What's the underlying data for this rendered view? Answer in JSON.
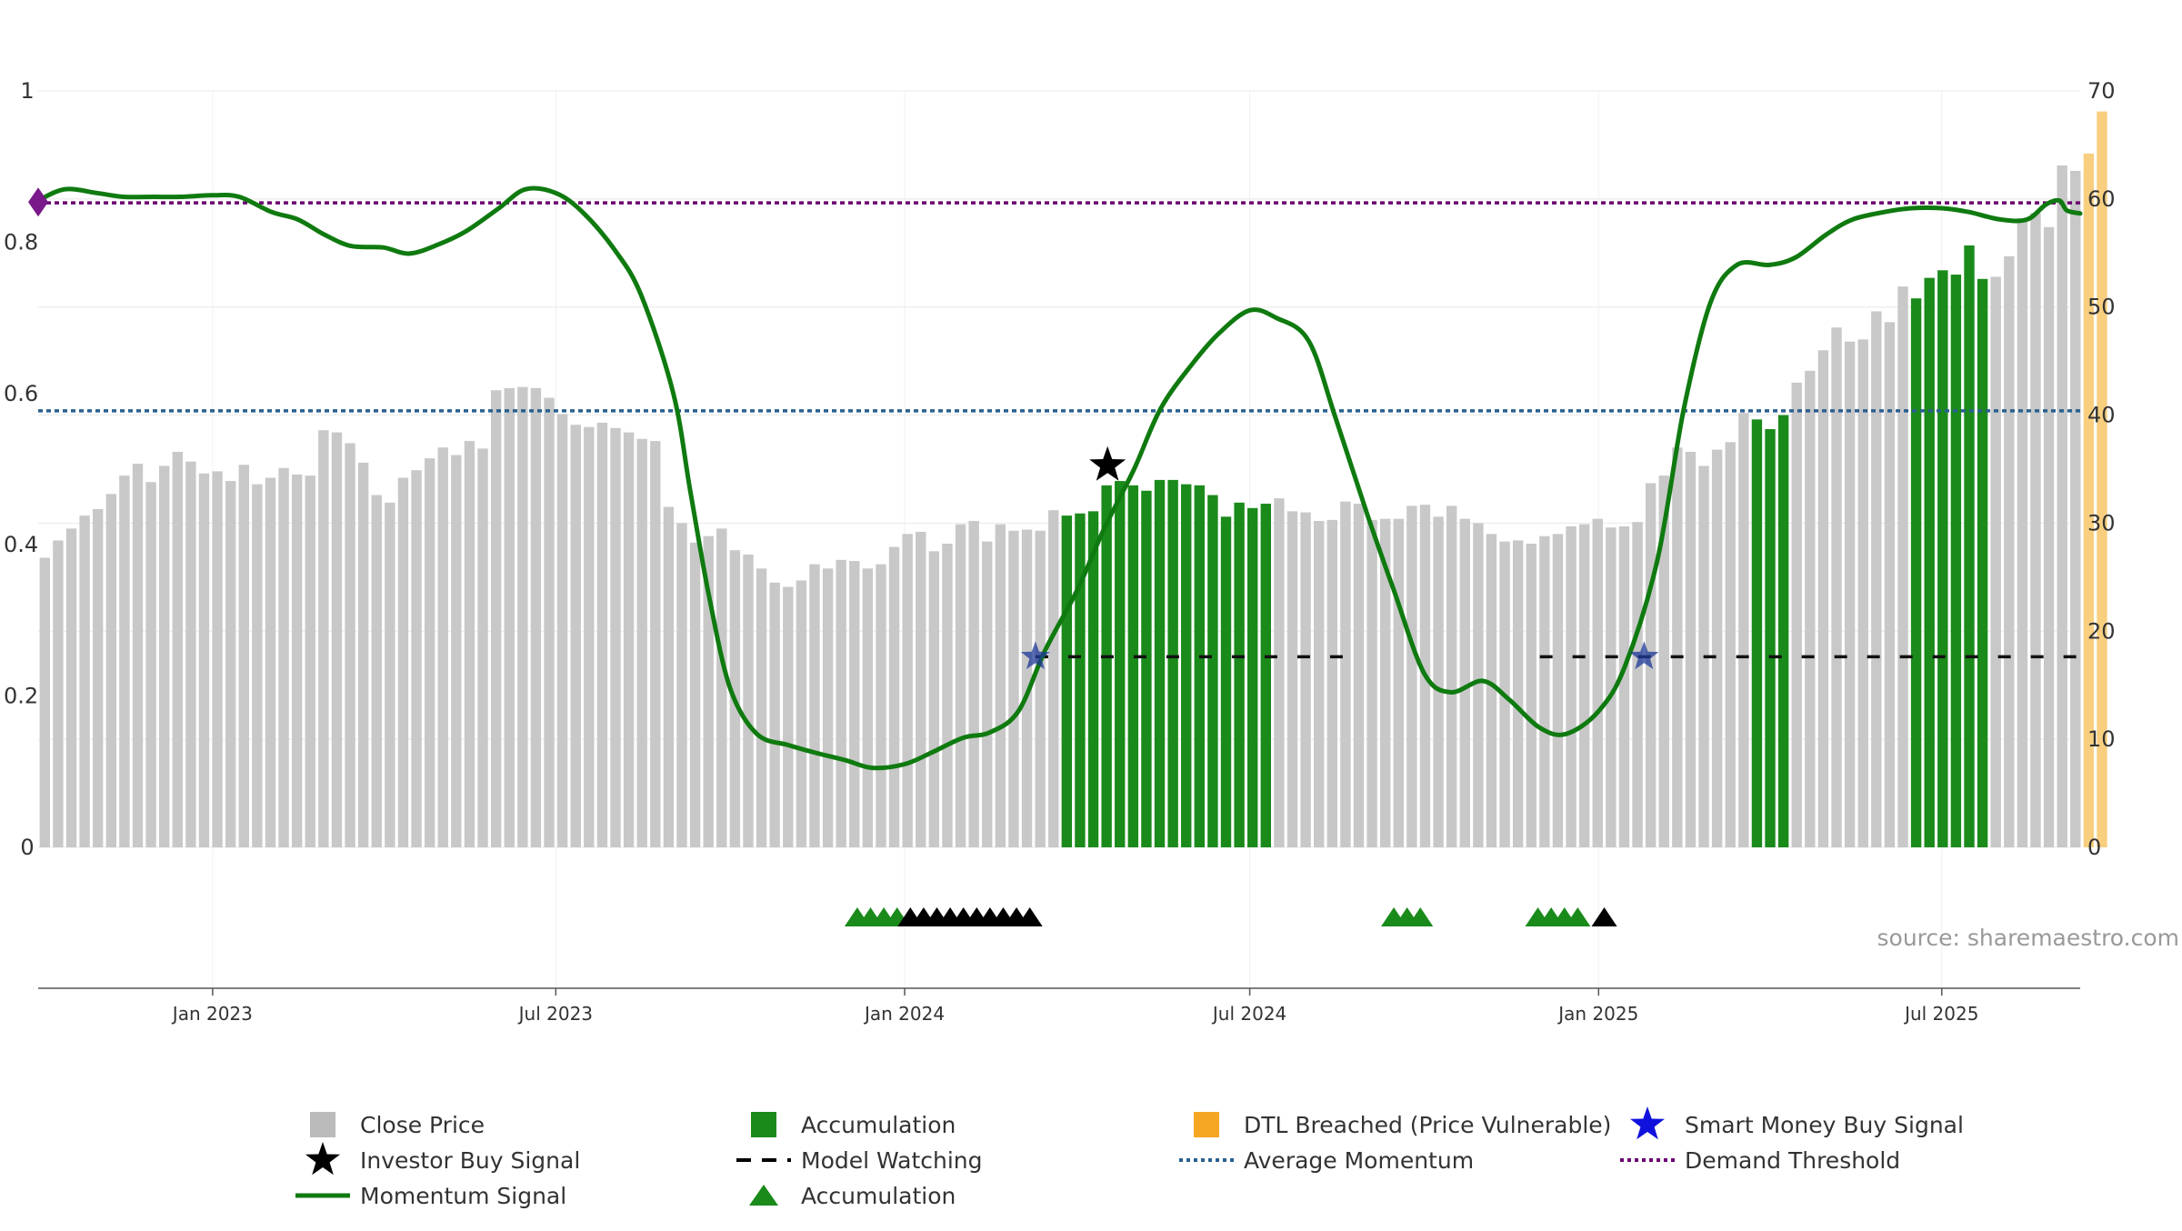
{
  "chart_data": {
    "type": "bar",
    "title": "",
    "left_axis": {
      "min": 0,
      "max": 1,
      "ticks": [
        "0",
        "0.2",
        "0.4",
        "0.6",
        "0.8",
        "1"
      ]
    },
    "right_axis": {
      "min": 0,
      "max": 70,
      "ticks": [
        "0",
        "10",
        "20",
        "30",
        "40",
        "50",
        "60",
        "70"
      ]
    },
    "x_axis": {
      "start": "2022-10-01",
      "end": "2025-09-12",
      "ticks": [
        {
          "label": "Jan 2023",
          "date": "2023-01-01"
        },
        {
          "label": "Jul 2023",
          "date": "2023-07-01"
        },
        {
          "label": "Jan 2024",
          "date": "2024-01-01"
        },
        {
          "label": "Jul 2024",
          "date": "2024-07-01"
        },
        {
          "label": "Jan 2025",
          "date": "2025-01-01"
        },
        {
          "label": "Jul 2025",
          "date": "2025-07-01"
        }
      ]
    },
    "bars": {
      "start": "2022-10-01",
      "step_days": 7,
      "values": [
        26.8,
        28.4,
        29.5,
        30.7,
        31.3,
        32.7,
        34.4,
        35.5,
        33.8,
        35.3,
        36.6,
        35.7,
        34.6,
        34.8,
        33.9,
        35.4,
        33.6,
        34.2,
        35.1,
        34.5,
        34.4,
        38.6,
        38.4,
        37.4,
        35.6,
        32.6,
        31.9,
        34.2,
        34.9,
        36.0,
        37.0,
        36.3,
        37.6,
        36.9,
        42.3,
        42.5,
        42.6,
        42.5,
        41.6,
        40.1,
        39.1,
        38.9,
        39.3,
        38.8,
        38.4,
        37.8,
        37.6,
        31.5,
        30.0,
        28.2,
        28.8,
        29.5,
        27.5,
        27.1,
        25.8,
        24.5,
        24.1,
        24.7,
        26.2,
        25.8,
        26.6,
        26.5,
        25.8,
        26.2,
        27.8,
        29.0,
        29.2,
        27.4,
        28.1,
        29.9,
        30.2,
        28.3,
        29.9,
        29.3,
        29.4,
        29.3,
        31.2,
        30.7,
        30.9,
        31.1,
        33.5,
        33.9,
        33.5,
        33.0,
        34.0,
        34.0,
        33.6,
        33.5,
        32.6,
        30.6,
        31.9,
        31.4,
        31.8,
        32.3,
        31.1,
        31.0,
        30.2,
        30.3,
        32.0,
        31.8,
        30.3,
        30.4,
        30.4,
        31.6,
        31.7,
        30.6,
        31.6,
        30.4,
        30.0,
        29.0,
        28.3,
        28.4,
        28.1,
        28.8,
        29.0,
        29.7,
        29.9,
        30.4,
        29.6,
        29.7,
        30.1,
        33.7,
        34.4,
        37.0,
        36.6,
        35.3,
        36.8,
        37.5,
        40.2,
        39.6,
        38.7,
        40.0,
        43.0,
        44.1,
        46.0,
        48.1,
        46.8,
        47.0,
        49.6,
        48.6,
        51.9,
        50.8,
        52.7,
        53.4,
        53.0,
        55.7,
        52.6,
        52.8,
        54.7,
        58.2,
        58.7,
        57.4,
        63.1,
        62.6,
        64.2,
        68.1
      ],
      "accumulation_ranges": [
        [
          77,
          92
        ],
        [
          129,
          131
        ],
        [
          141,
          146
        ]
      ],
      "dtl_start_index": 154
    },
    "momentum_signal": {
      "x": [
        "2022-10-01",
        "2022-10-15",
        "2022-11-01",
        "2022-11-15",
        "2022-12-01",
        "2022-12-15",
        "2023-01-01",
        "2023-01-15",
        "2023-02-01",
        "2023-02-15",
        "2023-03-01",
        "2023-03-15",
        "2023-04-01",
        "2023-04-15",
        "2023-05-01",
        "2023-05-15",
        "2023-06-01",
        "2023-06-15",
        "2023-07-01",
        "2023-07-15",
        "2023-08-01",
        "2023-08-15",
        "2023-09-01",
        "2023-09-10",
        "2023-09-20",
        "2023-10-01",
        "2023-10-15",
        "2023-11-01",
        "2023-11-15",
        "2023-12-01",
        "2023-12-15",
        "2024-01-01",
        "2024-01-15",
        "2024-02-01",
        "2024-02-15",
        "2024-03-01",
        "2024-03-15",
        "2024-04-01",
        "2024-04-15",
        "2024-05-01",
        "2024-05-15",
        "2024-06-01",
        "2024-06-15",
        "2024-07-01",
        "2024-07-15",
        "2024-08-01",
        "2024-08-15",
        "2024-09-01",
        "2024-09-15",
        "2024-10-01",
        "2024-10-15",
        "2024-11-01",
        "2024-11-15",
        "2024-12-01",
        "2024-12-15",
        "2025-01-01",
        "2025-01-15",
        "2025-02-01",
        "2025-02-15",
        "2025-03-01",
        "2025-03-15",
        "2025-04-01",
        "2025-04-15",
        "2025-05-01",
        "2025-05-15",
        "2025-06-01",
        "2025-06-15",
        "2025-07-01",
        "2025-07-15",
        "2025-08-01",
        "2025-08-15",
        "2025-08-25",
        "2025-09-01",
        "2025-09-05",
        "2025-09-12"
      ],
      "y": [
        0.855,
        0.87,
        0.865,
        0.86,
        0.86,
        0.86,
        0.862,
        0.86,
        0.84,
        0.83,
        0.81,
        0.795,
        0.793,
        0.785,
        0.798,
        0.815,
        0.845,
        0.87,
        0.865,
        0.84,
        0.79,
        0.73,
        0.6,
        0.47,
        0.33,
        0.21,
        0.15,
        0.135,
        0.125,
        0.115,
        0.105,
        0.11,
        0.125,
        0.145,
        0.152,
        0.18,
        0.26,
        0.34,
        0.42,
        0.5,
        0.58,
        0.64,
        0.68,
        0.71,
        0.7,
        0.67,
        0.57,
        0.44,
        0.34,
        0.23,
        0.205,
        0.22,
        0.195,
        0.158,
        0.15,
        0.18,
        0.24,
        0.38,
        0.58,
        0.72,
        0.77,
        0.77,
        0.78,
        0.81,
        0.83,
        0.84,
        0.845,
        0.845,
        0.84,
        0.83,
        0.83,
        0.85,
        0.855,
        0.842,
        0.838
      ]
    },
    "average_momentum": 0.577,
    "demand_threshold": 0.852,
    "model_watching_level": 0.252,
    "model_watching_ranges": [
      [
        "2024-03-10",
        "2024-08-20"
      ],
      [
        "2024-12-01",
        "2025-09-12"
      ]
    ],
    "smart_money_buy_signals": [
      {
        "date": "2024-03-10",
        "value": 0.252
      },
      {
        "date": "2025-01-25",
        "value": 0.252
      }
    ],
    "investor_buy_signals": [
      {
        "date": "2024-04-17",
        "value": 0.505
      }
    ],
    "start_marker": {
      "date": "2022-10-01",
      "value": 0.853
    },
    "accumulation_markers": {
      "green": [
        "2023-12-07",
        "2023-12-14",
        "2023-12-21",
        "2023-12-28",
        "2024-09-15",
        "2024-09-22",
        "2024-09-29",
        "2024-11-30",
        "2024-12-07",
        "2024-12-14",
        "2024-12-21"
      ],
      "black": [
        "2024-01-04",
        "2024-01-11",
        "2024-01-18",
        "2024-01-25",
        "2024-02-01",
        "2024-02-08",
        "2024-02-15",
        "2024-02-22",
        "2024-02-29",
        "2024-03-07",
        "2025-01-04"
      ]
    },
    "legend": [
      {
        "label": "Close Price",
        "type": "square",
        "color": "#bbbbbb"
      },
      {
        "label": "Accumulation",
        "type": "square",
        "color": "#1a8a1a"
      },
      {
        "label": "DTL Breached (Price Vulnerable)",
        "type": "square",
        "color": "#f5a623"
      },
      {
        "label": "Smart Money Buy Signal",
        "type": "star",
        "color": "#1111dd"
      },
      {
        "label": "Investor Buy Signal",
        "type": "star",
        "color": "#000000"
      },
      {
        "label": "Model Watching",
        "type": "dash",
        "color": "#000000"
      },
      {
        "label": "Average Momentum",
        "type": "dotted",
        "color": "#2a6090"
      },
      {
        "label": "Demand Threshold",
        "type": "dotted",
        "color": "#6a0070"
      },
      {
        "label": "Momentum Signal",
        "type": "line",
        "color": "#0f7a0f"
      },
      {
        "label": "Accumulation",
        "type": "triangle",
        "color": "#1a8a1a"
      }
    ],
    "colors": {
      "close_price": "#c8c8c8",
      "accumulation": "#1a8a1a",
      "dtl": "#f8cf7f",
      "momentum": "#0f7a0f",
      "average_momentum": "#2a6090",
      "demand_threshold": "#6a0070",
      "smart_money": "#1f3a99",
      "grid": "#e8e8e8"
    },
    "source": "source: sharemaestro.com"
  }
}
